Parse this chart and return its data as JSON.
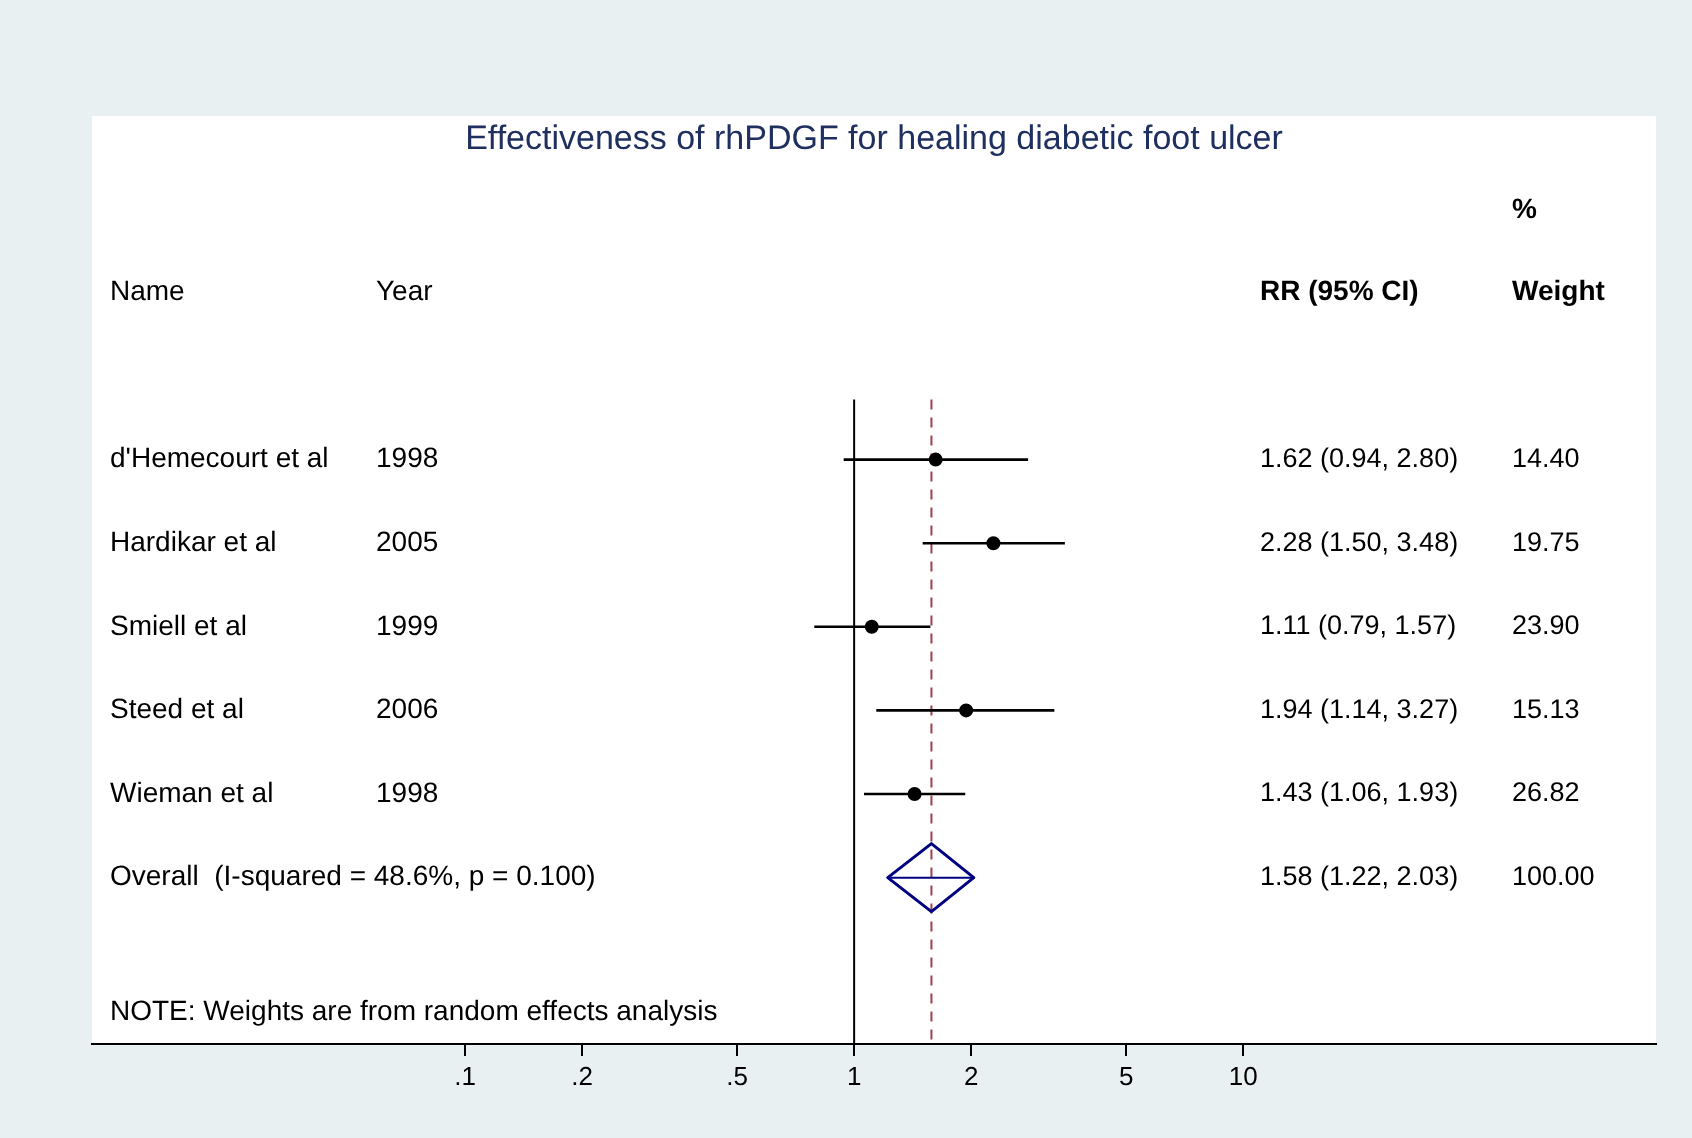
{
  "chart_data": {
    "type": "scatter",
    "title": "Effectiveness of rhPDGF for healing diabetic foot ulcer",
    "orientation": "horizontal",
    "log": "x",
    "categories": [
      "d'Hemecourt et al",
      "Hardikar et al",
      "Smiell et al",
      "Steed et al",
      "Wieman et al",
      "Overall  (I-squared = 48.6%, p = 0.100)"
    ],
    "series": [
      {
        "marker": "circle",
        "color": "#000000",
        "values": [
          1.62,
          2.28,
          1.11,
          1.94,
          1.43,
          null
        ],
        "errors": [
          [
            0.94,
            2.8
          ],
          [
            1.5,
            3.48
          ],
          [
            0.79,
            1.57
          ],
          [
            1.14,
            3.27
          ],
          [
            1.06,
            1.93
          ],
          null
        ]
      },
      {
        "marker": "diamond",
        "color": "#000080",
        "values": [
          null,
          null,
          null,
          null,
          null,
          1.58
        ],
        "errors": [
          null,
          null,
          null,
          null,
          null,
          [
            1.22,
            2.03
          ]
        ]
      }
    ],
    "xlim": [
      0.011,
      115
    ],
    "xticks": [
      {
        "value": 0.1,
        "label": ".1"
      },
      {
        "value": 0.2,
        "label": ".2"
      },
      {
        "value": 0.5,
        "label": ".5"
      },
      1,
      2,
      5,
      10
    ],
    "ref_lines": [
      {
        "axis": "x",
        "value": 1,
        "color": "#000000",
        "line_style": "solid"
      },
      {
        "axis": "x",
        "value": 1.58,
        "color": "#a04050",
        "line_style": "dashed"
      }
    ],
    "grid": false,
    "legend": false,
    "annotations": [
      "%",
      "Name",
      "Year",
      "RR (95% CI)",
      "Weight",
      "1998",
      "2005",
      "1999",
      "2006",
      "1998",
      "1.62 (0.94, 2.80)",
      "2.28 (1.50, 3.48)",
      "1.11 (0.79, 1.57)",
      "1.94 (1.14, 3.27)",
      "1.43 (1.06, 1.93)",
      "1.58 (1.22, 2.03)",
      "14.40",
      "19.75",
      "23.90",
      "15.13",
      "26.82",
      "100.00",
      "NOTE: Weights are from random effects analysis"
    ]
  }
}
